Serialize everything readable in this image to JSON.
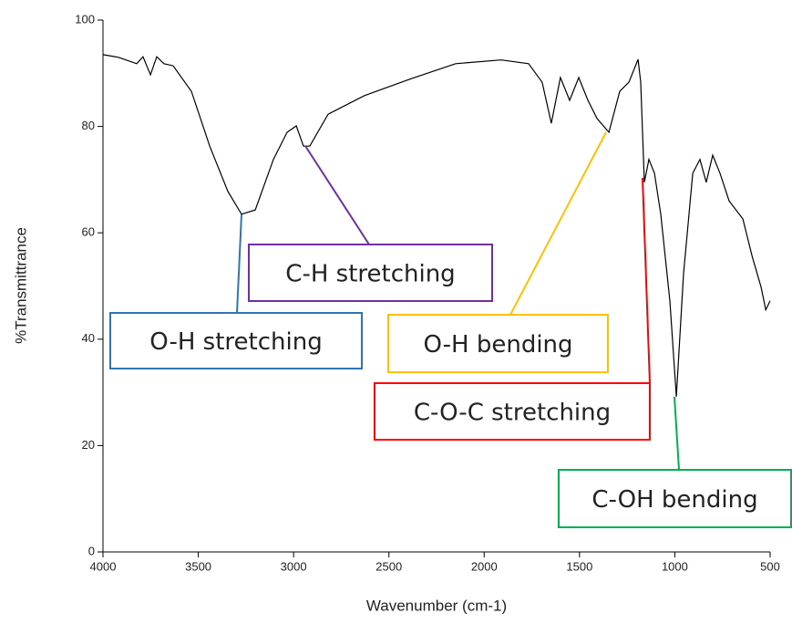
{
  "chart_data": {
    "type": "line",
    "xlabel": "Wavenumber (cm-1)",
    "ylabel": "%Transmittrance",
    "xlim": [
      4000,
      500
    ],
    "ylim": [
      0,
      100
    ],
    "xticks": [
      4000,
      3500,
      3000,
      2500,
      2000,
      1500,
      1000,
      500
    ],
    "yticks": [
      0,
      20,
      40,
      60,
      80,
      100
    ],
    "series": [
      {
        "color": "#000000",
        "x": [
          4000,
          3919,
          3823,
          3790,
          3751,
          3718,
          3680,
          3632,
          3536,
          3440,
          3345,
          3273,
          3201,
          3106,
          3034,
          2986,
          2948,
          2915,
          2819,
          2628,
          2389,
          2150,
          1911,
          1767,
          1696,
          1648,
          1600,
          1552,
          1504,
          1456,
          1408,
          1346,
          1289,
          1241,
          1193,
          1179,
          1160,
          1136,
          1107,
          1074,
          1026,
          992,
          954,
          906,
          868,
          835,
          801,
          763,
          715,
          643,
          595,
          547,
          523,
          500
        ],
        "values": [
          93.5,
          93,
          91.8,
          93.1,
          89.7,
          93.1,
          91.8,
          91.4,
          86.6,
          76.3,
          67.8,
          63.5,
          64.3,
          73.8,
          78.9,
          80.1,
          76.3,
          76.3,
          82.3,
          85.8,
          88.9,
          91.8,
          92.5,
          91.8,
          88.3,
          80.6,
          89.2,
          84.9,
          89.2,
          84.9,
          81.5,
          78.9,
          86.6,
          88.3,
          92.6,
          88.3,
          69.5,
          73.8,
          71.2,
          63.5,
          47.2,
          29.2,
          52.3,
          71.2,
          73.8,
          69.5,
          74.6,
          71.2,
          66,
          62.6,
          55.7,
          49.7,
          45.5,
          47.2
        ]
      }
    ],
    "annotations": [
      {
        "text": "O-H stretching",
        "color": "#2e75b6"
      },
      {
        "text": "C-H stretching",
        "color": "#7030a0"
      },
      {
        "text": "O-H bending",
        "color": "#ffc000"
      },
      {
        "text": "C-O-C stretching",
        "color": "#ff0000"
      },
      {
        "text": "C-OH bending",
        "color": "#00b050"
      }
    ]
  }
}
